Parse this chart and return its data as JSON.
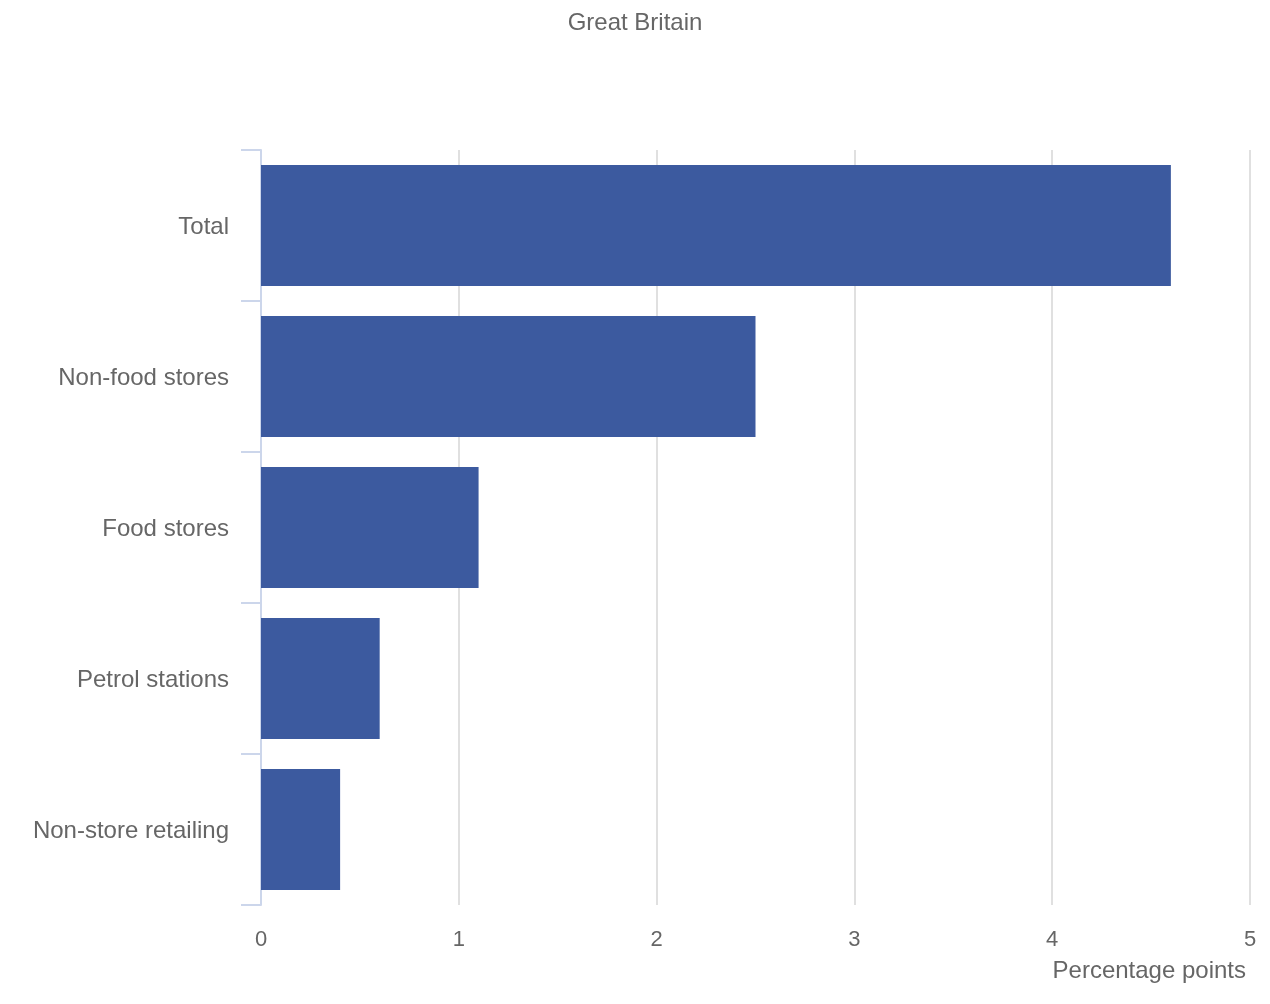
{
  "chart_data": {
    "type": "bar",
    "orientation": "horizontal",
    "title": "Great Britain",
    "xlabel": "Percentage points",
    "categories": [
      "Total",
      "Non-food stores",
      "Food stores",
      "Petrol stations",
      "Non-store retailing"
    ],
    "values": [
      4.6,
      2.5,
      1.1,
      0.6,
      0.4
    ],
    "color": "#3c5a9f",
    "xlim": [
      0,
      5
    ],
    "xticks": [
      0,
      1,
      2,
      3,
      4,
      5
    ],
    "grid": "x"
  }
}
